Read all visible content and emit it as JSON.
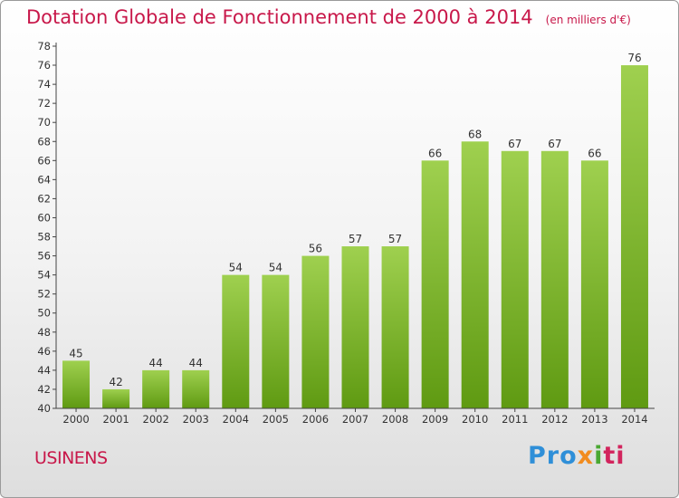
{
  "title": "Dotation Globale de Fonctionnement de 2000 à 2014",
  "subtitle": "(en milliers d'€)",
  "commune": "USINENS",
  "logo": {
    "p1": "Pro",
    "p2": "x",
    "p3": "i",
    "p4": "ti"
  },
  "colors": {
    "accent": "#c8184a",
    "bar_top": "#9fd04f",
    "bar_bottom": "#5f9a12"
  },
  "chart_data": {
    "type": "bar",
    "title": "Dotation Globale de Fonctionnement de 2000 à 2014",
    "subtitle": "(en milliers d'€)",
    "xlabel": "",
    "ylabel": "",
    "categories": [
      "2000",
      "2001",
      "2002",
      "2003",
      "2004",
      "2005",
      "2006",
      "2007",
      "2008",
      "2009",
      "2010",
      "2011",
      "2012",
      "2013",
      "2014"
    ],
    "values": [
      45,
      42,
      44,
      44,
      54,
      54,
      56,
      57,
      57,
      66,
      68,
      67,
      67,
      66,
      76
    ],
    "ylim": [
      40,
      78
    ],
    "ytick_step": 2,
    "grid": false,
    "data_labels": true
  }
}
